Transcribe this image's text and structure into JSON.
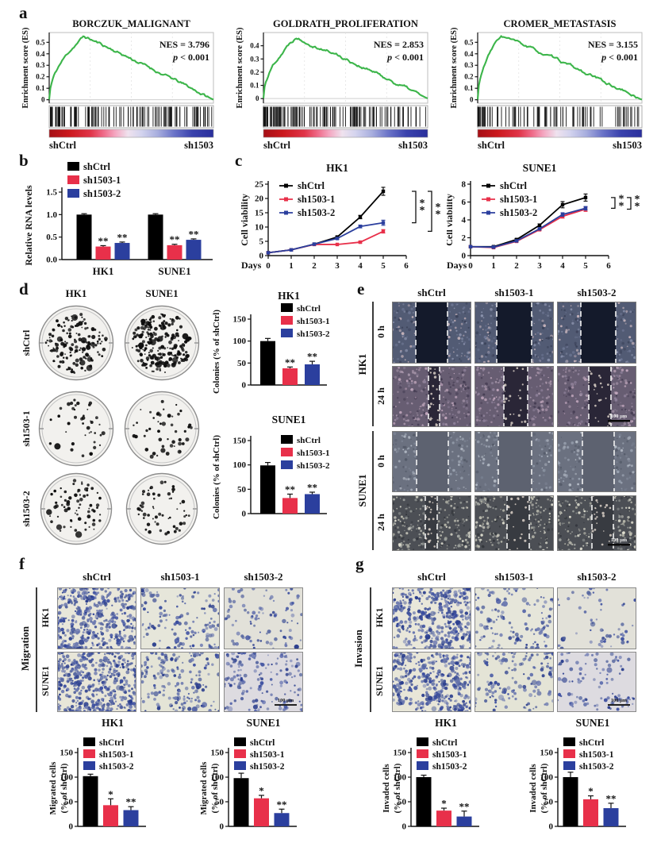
{
  "colors": {
    "shCtrl": "#000000",
    "sh1503-1": "#E8304A",
    "sh1503-2": "#2B3F9E",
    "gsea_curve": "#3CB54A"
  },
  "panels": {
    "a": {
      "letter": "a"
    },
    "b": {
      "letter": "b"
    },
    "c": {
      "letter": "c"
    },
    "d": {
      "letter": "d",
      "col_headers": [
        "HK1",
        "SUNE1"
      ],
      "row_labels": [
        "shCtrl",
        "sh1503-1",
        "sh1503-2"
      ],
      "dish_dot_counts": [
        [
          150,
          210
        ],
        [
          40,
          50
        ],
        [
          70,
          58
        ]
      ]
    },
    "e": {
      "letter": "e",
      "col_headers": [
        "shCtrl",
        "sh1503-1",
        "sh1503-2"
      ],
      "scale_bar": "100 μm",
      "rows": [
        {
          "cell": "HK1",
          "time": "0 h",
          "tone": "dark-blue",
          "gaps": [
            [
              0.3,
              0.7
            ],
            [
              0.28,
              0.72
            ],
            [
              0.3,
              0.74
            ]
          ]
        },
        {
          "cell": "HK1",
          "time": "24 h",
          "tone": "purple",
          "gaps": [
            [
              0.46,
              0.6
            ],
            [
              0.37,
              0.67
            ],
            [
              0.4,
              0.68
            ]
          ],
          "scale_bar_on": 2
        },
        {
          "cell": "SUNE1",
          "time": "0 h",
          "tone": "grey",
          "gaps": [
            [
              0.31,
              0.71
            ],
            [
              0.3,
              0.72
            ],
            [
              0.32,
              0.72
            ]
          ]
        },
        {
          "cell": "SUNE1",
          "time": "24 h",
          "tone": "dark-grey",
          "gaps": [
            [
              0.42,
              0.57
            ],
            [
              0.41,
              0.69
            ],
            [
              0.44,
              0.71
            ]
          ],
          "scale_bar_on": 2
        }
      ]
    },
    "f": {
      "letter": "f",
      "col_headers": [
        "shCtrl",
        "sh1503-1",
        "sh1503-2"
      ],
      "side_label": "Migration",
      "row_labels": [
        "HK1",
        "SUNE1"
      ],
      "scale_bar": "100 μm",
      "dot_counts": [
        [
          420,
          135,
          90
        ],
        [
          470,
          175,
          160
        ]
      ]
    },
    "g": {
      "letter": "g",
      "col_headers": [
        "shCtrl",
        "sh1503-1",
        "sh1503-2"
      ],
      "side_label": "Invasion",
      "row_labels": [
        "HK1",
        "SUNE1"
      ],
      "scale_bar": "100 μm",
      "dot_counts": [
        [
          400,
          140,
          60
        ],
        [
          380,
          150,
          100
        ]
      ]
    }
  },
  "chart_data": [
    {
      "id": "gsea-borczuk",
      "type": "line",
      "subtype": "gsea_enrichment",
      "title": "BORCZUK_MALIGNANT",
      "ylabel": "Enrichment score (ES)",
      "yticks": [
        0,
        0.1,
        0.2,
        0.3,
        0.4,
        0.5
      ],
      "ylim": [
        -0.03,
        0.585
      ],
      "peak_es": 0.55,
      "peak_x": 0.21,
      "nes": 3.796,
      "p_label": "p < 0.001",
      "x_left_label": "shCtrl",
      "x_right_label": "sh1503",
      "seed": 11,
      "n_hits": 125
    },
    {
      "id": "gsea-goldrath",
      "type": "line",
      "subtype": "gsea_enrichment",
      "title": "GOLDRATH_PROLIFERATION",
      "ylabel": "Enrichment score (ES)",
      "yticks": [
        0,
        0.1,
        0.2,
        0.3,
        0.4
      ],
      "ylim": [
        -0.035,
        0.5
      ],
      "peak_es": 0.47,
      "peak_x": 0.2,
      "nes": 2.853,
      "p_label": "p < 0.001",
      "x_left_label": "shCtrl",
      "x_right_label": "sh1503",
      "seed": 22,
      "n_hits": 135
    },
    {
      "id": "gsea-cromer",
      "type": "line",
      "subtype": "gsea_enrichment",
      "title": "CROMER_METASTASIS",
      "ylabel": "Enrichment score (ES)",
      "yticks": [
        0,
        0.1,
        0.2,
        0.3,
        0.4,
        0.5
      ],
      "ylim": [
        -0.03,
        0.585
      ],
      "peak_es": 0.555,
      "peak_x": 0.14,
      "nes": 3.155,
      "p_label": "p < 0.001",
      "x_left_label": "shCtrl",
      "x_right_label": "sh1503",
      "seed": 33,
      "n_hits": 95
    },
    {
      "id": "rna-levels",
      "type": "bar",
      "title": "",
      "ylabel": "Relative RNA levels",
      "categories": [
        "HK1",
        "SUNE1"
      ],
      "yticks": [
        0,
        0.5,
        1,
        1.5
      ],
      "ytick_labels": [
        "0.0",
        "0.5",
        "1.0",
        "1.5"
      ],
      "series": [
        {
          "name": "shCtrl",
          "values": [
            1.0,
            1.0
          ],
          "errors": [
            0.02,
            0.02
          ],
          "sig": [
            "",
            ""
          ]
        },
        {
          "name": "sh1503-1",
          "values": [
            0.29,
            0.32
          ],
          "errors": [
            0.02,
            0.02
          ],
          "sig": [
            "**",
            "**"
          ]
        },
        {
          "name": "sh1503-2",
          "values": [
            0.37,
            0.44
          ],
          "errors": [
            0.02,
            0.02
          ],
          "sig": [
            "**",
            "**"
          ]
        }
      ]
    },
    {
      "id": "viability-hk1",
      "type": "line",
      "title": "HK1",
      "xlabel": "Days",
      "ylabel": "Cell viability",
      "x": [
        0,
        1,
        2,
        3,
        4,
        5
      ],
      "xticks": [
        0,
        1,
        2,
        3,
        4,
        5,
        6
      ],
      "yticks": [
        0,
        5,
        10,
        15,
        20,
        25
      ],
      "series": [
        {
          "name": "shCtrl",
          "values": [
            1,
            2,
            4,
            6.5,
            13.5,
            22.5
          ],
          "errors": [
            0,
            0,
            0,
            0.3,
            0.6,
            1.4
          ]
        },
        {
          "name": "sh1503-1",
          "values": [
            1,
            2,
            3.9,
            3.9,
            4.7,
            8.5
          ],
          "errors": [
            0,
            0,
            0,
            0,
            0.3,
            0.6
          ]
        },
        {
          "name": "sh1503-2",
          "values": [
            1,
            2,
            4,
            6,
            10.2,
            11.5
          ],
          "errors": [
            0,
            0,
            0,
            0.3,
            0.5,
            0.9
          ]
        }
      ],
      "sig_brackets": [
        {
          "label": "**",
          "series_a": "shCtrl",
          "series_b": "sh1503-2"
        },
        {
          "label": "**",
          "series_a": "shCtrl",
          "series_b": "sh1503-1"
        }
      ]
    },
    {
      "id": "viability-sune1",
      "type": "line",
      "title": "SUNE1",
      "xlabel": "Days",
      "ylabel": "Cell viability",
      "x": [
        0,
        1,
        2,
        3,
        4,
        5
      ],
      "xticks": [
        0,
        1,
        2,
        3,
        4,
        5,
        6
      ],
      "yticks": [
        0,
        2,
        4,
        6,
        8
      ],
      "series": [
        {
          "name": "shCtrl",
          "values": [
            1,
            1,
            1.8,
            3.4,
            5.7,
            6.5
          ],
          "errors": [
            0,
            0.1,
            0.1,
            0.15,
            0.35,
            0.4
          ]
        },
        {
          "name": "sh1503-1",
          "values": [
            1,
            0.9,
            1.6,
            2.9,
            4.4,
            5.2
          ],
          "errors": [
            0,
            0.1,
            0.1,
            0.1,
            0.2,
            0.25
          ]
        },
        {
          "name": "sh1503-2",
          "values": [
            1,
            0.95,
            1.65,
            3.0,
            4.6,
            5.3
          ],
          "errors": [
            0,
            0.1,
            0.1,
            0.1,
            0.2,
            0.2
          ]
        }
      ],
      "sig_brackets": [
        {
          "label": "**",
          "series_a": "shCtrl",
          "series_b": "sh1503-2"
        },
        {
          "label": "**",
          "series_a": "shCtrl",
          "series_b": "sh1503-1"
        }
      ]
    },
    {
      "id": "colonies-hk1",
      "type": "bar",
      "title": "HK1",
      "ylabel": "Colonies (% of shCtrl)",
      "categories": [
        ""
      ],
      "yticks": [
        0,
        50,
        100,
        150
      ],
      "series": [
        {
          "name": "shCtrl",
          "values": [
            100
          ],
          "errors": [
            6
          ],
          "sig": [
            ""
          ]
        },
        {
          "name": "sh1503-1",
          "values": [
            38
          ],
          "errors": [
            3
          ],
          "sig": [
            "**"
          ]
        },
        {
          "name": "sh1503-2",
          "values": [
            47
          ],
          "errors": [
            7
          ],
          "sig": [
            "**"
          ]
        }
      ]
    },
    {
      "id": "colonies-sune1",
      "type": "bar",
      "title": "SUNE1",
      "ylabel": "Colonies (% of shCtrl)",
      "categories": [
        ""
      ],
      "yticks": [
        0,
        50,
        100,
        150
      ],
      "series": [
        {
          "name": "shCtrl",
          "values": [
            99
          ],
          "errors": [
            6
          ],
          "sig": [
            ""
          ]
        },
        {
          "name": "sh1503-1",
          "values": [
            32
          ],
          "errors": [
            8
          ],
          "sig": [
            "**"
          ]
        },
        {
          "name": "sh1503-2",
          "values": [
            40
          ],
          "errors": [
            4
          ],
          "sig": [
            "**"
          ]
        }
      ]
    },
    {
      "id": "migration-hk1",
      "type": "bar",
      "title": "HK1",
      "ylabel": [
        "Migrated cells",
        "(% of shCtrl)"
      ],
      "categories": [
        ""
      ],
      "yticks": [
        0,
        50,
        100,
        150
      ],
      "series": [
        {
          "name": "shCtrl",
          "values": [
            102
          ],
          "errors": [
            4
          ],
          "sig": [
            ""
          ]
        },
        {
          "name": "sh1503-1",
          "values": [
            43
          ],
          "errors": [
            13
          ],
          "sig": [
            "*"
          ]
        },
        {
          "name": "sh1503-2",
          "values": [
            33
          ],
          "errors": [
            7
          ],
          "sig": [
            "**"
          ]
        }
      ]
    },
    {
      "id": "migration-sune1",
      "type": "bar",
      "title": "SUNE1",
      "ylabel": [
        "Migrated cells",
        "(% of shCtrl)"
      ],
      "categories": [
        ""
      ],
      "yticks": [
        0,
        50,
        100,
        150
      ],
      "series": [
        {
          "name": "shCtrl",
          "values": [
            98
          ],
          "errors": [
            10
          ],
          "sig": [
            ""
          ]
        },
        {
          "name": "sh1503-1",
          "values": [
            57
          ],
          "errors": [
            6
          ],
          "sig": [
            "*"
          ]
        },
        {
          "name": "sh1503-2",
          "values": [
            27
          ],
          "errors": [
            8
          ],
          "sig": [
            "**"
          ]
        }
      ]
    },
    {
      "id": "invasion-hk1",
      "type": "bar",
      "title": "HK1",
      "ylabel": [
        "Invaded cells",
        "(% of shCtrl)"
      ],
      "categories": [
        ""
      ],
      "yticks": [
        0,
        50,
        100,
        150
      ],
      "series": [
        {
          "name": "shCtrl",
          "values": [
            100
          ],
          "errors": [
            4
          ],
          "sig": [
            ""
          ]
        },
        {
          "name": "sh1503-1",
          "values": [
            32
          ],
          "errors": [
            5
          ],
          "sig": [
            "*"
          ]
        },
        {
          "name": "sh1503-2",
          "values": [
            20
          ],
          "errors": [
            11
          ],
          "sig": [
            "**"
          ]
        }
      ]
    },
    {
      "id": "invasion-sune1",
      "type": "bar",
      "title": "SUNE1",
      "ylabel": [
        "Invaded cells",
        "(% of shCtrl)"
      ],
      "categories": [
        ""
      ],
      "yticks": [
        0,
        50,
        100,
        150
      ],
      "series": [
        {
          "name": "shCtrl",
          "values": [
            100
          ],
          "errors": [
            10
          ],
          "sig": [
            ""
          ]
        },
        {
          "name": "sh1503-1",
          "values": [
            55
          ],
          "errors": [
            7
          ],
          "sig": [
            "*"
          ]
        },
        {
          "name": "sh1503-2",
          "values": [
            37
          ],
          "errors": [
            10
          ],
          "sig": [
            "**"
          ]
        }
      ]
    }
  ]
}
